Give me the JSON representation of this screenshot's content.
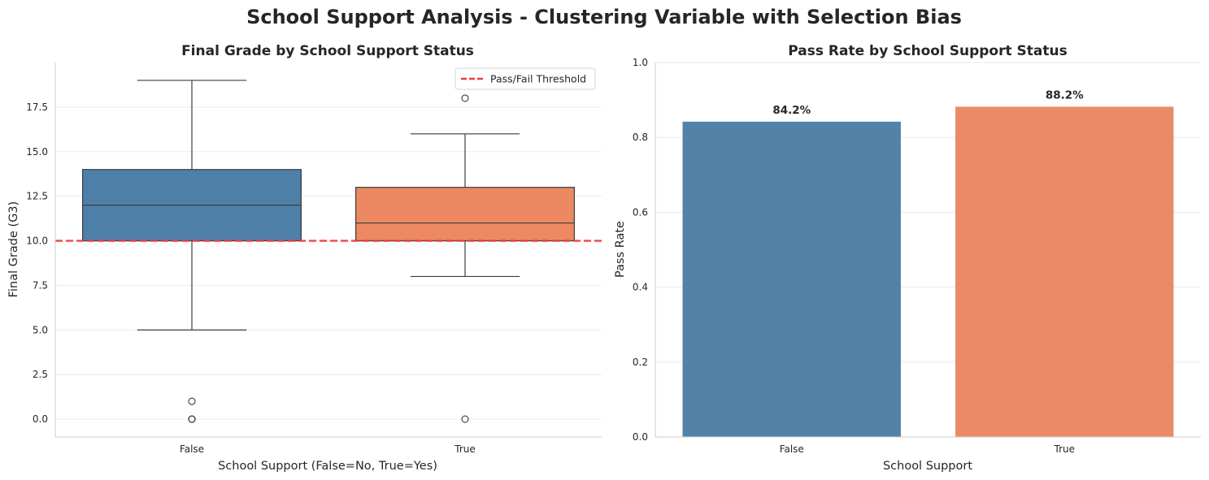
{
  "suptitle": "School Support Analysis - Clustering Variable with Selection Bias",
  "chart_data": [
    {
      "type": "box",
      "title": "Final Grade by School Support Status",
      "xlabel": "School Support (False=No, True=Yes)",
      "ylabel": "Final Grade (G3)",
      "categories": [
        "False",
        "True"
      ],
      "colors": [
        "#4e7fa8",
        "#ec8962"
      ],
      "ylim": [
        -1,
        20
      ],
      "yticks": [
        0.0,
        2.5,
        5.0,
        7.5,
        10.0,
        12.5,
        15.0,
        17.5
      ],
      "ytick_labels": [
        "0.0",
        "2.5",
        "5.0",
        "7.5",
        "10.0",
        "12.5",
        "15.0",
        "17.5"
      ],
      "boxes": [
        {
          "category": "False",
          "whisker_low": 5,
          "q1": 10,
          "median": 12,
          "q3": 14,
          "whisker_high": 19,
          "outliers": [
            1,
            0,
            0,
            0
          ]
        },
        {
          "category": "True",
          "whisker_low": 8,
          "q1": 10,
          "median": 11,
          "q3": 13,
          "whisker_high": 16,
          "outliers": [
            18,
            0
          ]
        }
      ],
      "threshold": {
        "value": 10,
        "label": "Pass/Fail Threshold",
        "color": "#f03c3c"
      },
      "legend_position": "top-right",
      "grid": "y"
    },
    {
      "type": "bar",
      "title": "Pass Rate by School Support Status",
      "xlabel": "School Support",
      "ylabel": "Pass Rate",
      "categories": [
        "False",
        "True"
      ],
      "values": [
        0.842,
        0.882
      ],
      "data_labels": [
        "84.2%",
        "88.2%"
      ],
      "colors": [
        "#5282a8",
        "#ea8a66"
      ],
      "ylim": [
        0,
        1.0
      ],
      "yticks": [
        0.0,
        0.2,
        0.4,
        0.6,
        0.8,
        1.0
      ],
      "ytick_labels": [
        "0.0",
        "0.2",
        "0.4",
        "0.6",
        "0.8",
        "1.0"
      ],
      "grid": "y"
    }
  ]
}
